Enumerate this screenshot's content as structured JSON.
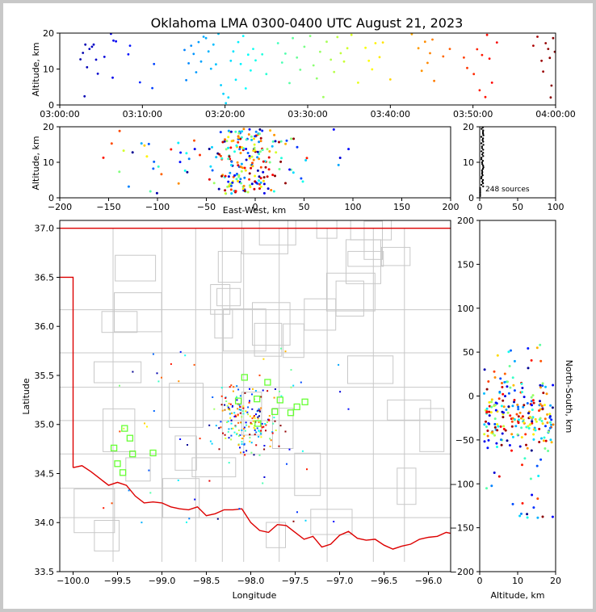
{
  "figure": {
    "title": "Oklahoma LMA 0300-0400 UTC August 21, 2023",
    "source_count_label": "248 sources"
  },
  "chart_data": [
    {
      "id": "time-height",
      "type": "scatter",
      "xlabel": "",
      "ylabel": "Altitude, km",
      "x_ticks": [
        "03:00:00",
        "03:10:00",
        "03:20:00",
        "03:30:00",
        "03:40:00",
        "03:50:00",
        "04:00:00"
      ],
      "xlim_minutes": [
        0,
        60
      ],
      "ylim": [
        0,
        20
      ],
      "y_ticks": [
        0,
        10,
        20
      ],
      "color_by": "time",
      "points_minutes_alt": [
        [
          2.5,
          12.7
        ],
        [
          2.8,
          14.5
        ],
        [
          3.1,
          16.8
        ],
        [
          3.3,
          10.5
        ],
        [
          3.6,
          15.6
        ],
        [
          3.9,
          16.2
        ],
        [
          4.1,
          16.8
        ],
        [
          4.4,
          12.6
        ],
        [
          4.6,
          8.7
        ],
        [
          3.0,
          2.4
        ],
        [
          5.4,
          13.4
        ],
        [
          6.2,
          19.8
        ],
        [
          6.5,
          17.9
        ],
        [
          6.8,
          17.7
        ],
        [
          6.4,
          7.6
        ],
        [
          8.5,
          16.5
        ],
        [
          8.3,
          14.1
        ],
        [
          9.7,
          6.3
        ],
        [
          11.2,
          4.7
        ],
        [
          11.4,
          11.4
        ],
        [
          15.1,
          15.3
        ],
        [
          15.3,
          6.9
        ],
        [
          15.6,
          11.6
        ],
        [
          15.9,
          16.5
        ],
        [
          16.2,
          14.2
        ],
        [
          16.5,
          9.1
        ],
        [
          16.8,
          17.5
        ],
        [
          17.1,
          12.1
        ],
        [
          17.4,
          19.0
        ],
        [
          17.7,
          18.6
        ],
        [
          18.0,
          14.9
        ],
        [
          18.3,
          10.1
        ],
        [
          18.6,
          16.8
        ],
        [
          18.9,
          11.3
        ],
        [
          19.2,
          19.8
        ],
        [
          19.5,
          5.5
        ],
        [
          19.8,
          3.1
        ],
        [
          20.1,
          0.5
        ],
        [
          20.4,
          2.1
        ],
        [
          20.7,
          12.3
        ],
        [
          21.0,
          14.9
        ],
        [
          21.3,
          7.0
        ],
        [
          21.6,
          17.5
        ],
        [
          21.9,
          11.4
        ],
        [
          22.2,
          19.2
        ],
        [
          22.5,
          4.6
        ],
        [
          22.8,
          14.0
        ],
        [
          23.1,
          9.6
        ],
        [
          23.4,
          15.6
        ],
        [
          23.7,
          12.4
        ],
        [
          24.5,
          14.1
        ],
        [
          25.0,
          8.6
        ],
        [
          26.4,
          17.2
        ],
        [
          26.9,
          11.8
        ],
        [
          27.3,
          14.3
        ],
        [
          27.8,
          6.1
        ],
        [
          28.2,
          18.6
        ],
        [
          28.7,
          13.2
        ],
        [
          29.1,
          9.8
        ],
        [
          29.6,
          16.2
        ],
        [
          30.3,
          19.2
        ],
        [
          30.7,
          11.0
        ],
        [
          31.1,
          7.4
        ],
        [
          31.5,
          14.8
        ],
        [
          31.9,
          2.2
        ],
        [
          32.3,
          17.6
        ],
        [
          32.8,
          12.6
        ],
        [
          33.2,
          9.2
        ],
        [
          33.6,
          18.9
        ],
        [
          34.0,
          14.4
        ],
        [
          34.4,
          12.1
        ],
        [
          34.8,
          15.8
        ],
        [
          35.3,
          19.5
        ],
        [
          36.1,
          6.2
        ],
        [
          37.0,
          15.9
        ],
        [
          37.4,
          12.3
        ],
        [
          37.8,
          9.9
        ],
        [
          38.2,
          17.2
        ],
        [
          38.7,
          13.3
        ],
        [
          39.1,
          17.4
        ],
        [
          40.0,
          7.1
        ],
        [
          42.6,
          19.7
        ],
        [
          43.4,
          15.8
        ],
        [
          43.8,
          9.5
        ],
        [
          44.2,
          17.6
        ],
        [
          44.5,
          11.7
        ],
        [
          44.8,
          14.4
        ],
        [
          45.1,
          18.2
        ],
        [
          45.3,
          6.7
        ],
        [
          46.4,
          13.5
        ],
        [
          47.2,
          15.6
        ],
        [
          48.9,
          13.2
        ],
        [
          49.3,
          10.3
        ],
        [
          50.1,
          8.6
        ],
        [
          50.5,
          15.5
        ],
        [
          50.8,
          4.1
        ],
        [
          51.1,
          13.9
        ],
        [
          51.7,
          19.5
        ],
        [
          52.0,
          12.9
        ],
        [
          52.3,
          6.2
        ],
        [
          52.9,
          17.4
        ],
        [
          51.5,
          2.2
        ],
        [
          57.3,
          16.5
        ],
        [
          57.8,
          19.0
        ],
        [
          58.3,
          12.3
        ],
        [
          58.5,
          9.3
        ],
        [
          58.8,
          17.2
        ],
        [
          59.1,
          15.6
        ],
        [
          59.3,
          13.1
        ],
        [
          59.5,
          5.4
        ],
        [
          59.7,
          18.6
        ],
        [
          59.9,
          14.8
        ],
        [
          59.4,
          2.1
        ]
      ]
    },
    {
      "id": "ew-height",
      "type": "scatter",
      "xlabel": "East-West, km",
      "ylabel": "Altitude, km",
      "xlim": [
        -200,
        200
      ],
      "x_ticks": [
        -200,
        -150,
        -100,
        -50,
        0,
        50,
        100,
        150,
        200
      ],
      "ylim": [
        0,
        20
      ],
      "y_ticks": [
        0,
        10,
        20
      ],
      "color_by": "time"
    },
    {
      "id": "histogram",
      "type": "scatter",
      "xlabel": "",
      "ylabel": "",
      "xlim": [
        0,
        100
      ],
      "x_ticks": [
        0,
        50,
        100
      ],
      "ylim": [
        0,
        20
      ],
      "y_ticks": [
        0,
        10,
        20
      ]
    },
    {
      "id": "plan-view",
      "type": "scatter",
      "xlabel": "Longitude",
      "ylabel": "Latitude",
      "xlim": [
        -100.15,
        -95.75
      ],
      "ylim": [
        33.5,
        37.08
      ],
      "x_ticks": [
        -100.0,
        -99.5,
        -99.0,
        -98.5,
        -98.0,
        -97.5,
        -97.0,
        -96.5,
        -96.0
      ],
      "x_tick_labels": [
        "−100.0",
        "−99.5",
        "−99.0",
        "−98.5",
        "−98.0",
        "−97.5",
        "−97.0",
        "−96.5",
        "−96.0"
      ],
      "y_ticks": [
        33.5,
        34.0,
        34.5,
        35.0,
        35.5,
        36.0,
        36.5,
        37.0
      ],
      "y_tick_labels": [
        "33.5",
        "34.0",
        "34.5",
        "35.0",
        "35.5",
        "36.0",
        "36.5",
        "37.0"
      ],
      "color_by": "time",
      "stations_color": "#66ff33",
      "stations_lonlat": [
        [
          -99.54,
          34.76
        ],
        [
          -99.5,
          34.6
        ],
        [
          -99.44,
          34.51
        ],
        [
          -99.42,
          34.96
        ],
        [
          -99.36,
          34.86
        ],
        [
          -99.33,
          34.7
        ],
        [
          -99.1,
          34.71
        ],
        [
          -98.14,
          35.24
        ],
        [
          -98.07,
          35.48
        ],
        [
          -97.93,
          35.26
        ],
        [
          -97.92,
          35.01
        ],
        [
          -97.81,
          35.43
        ],
        [
          -97.73,
          35.13
        ],
        [
          -97.67,
          35.25
        ],
        [
          -97.55,
          35.12
        ],
        [
          -97.48,
          35.18
        ],
        [
          -97.39,
          35.23
        ]
      ],
      "state_border_color": "#dd0000"
    },
    {
      "id": "ns-height",
      "type": "scatter",
      "xlabel": "Altitude, km",
      "ylabel": "North-South, km",
      "xlim": [
        0,
        20
      ],
      "x_ticks": [
        0,
        10,
        20
      ],
      "ylim": [
        -200,
        200
      ],
      "y_ticks": [
        -200,
        -150,
        -100,
        -50,
        0,
        50,
        100,
        150,
        200
      ],
      "color_by": "time"
    }
  ]
}
